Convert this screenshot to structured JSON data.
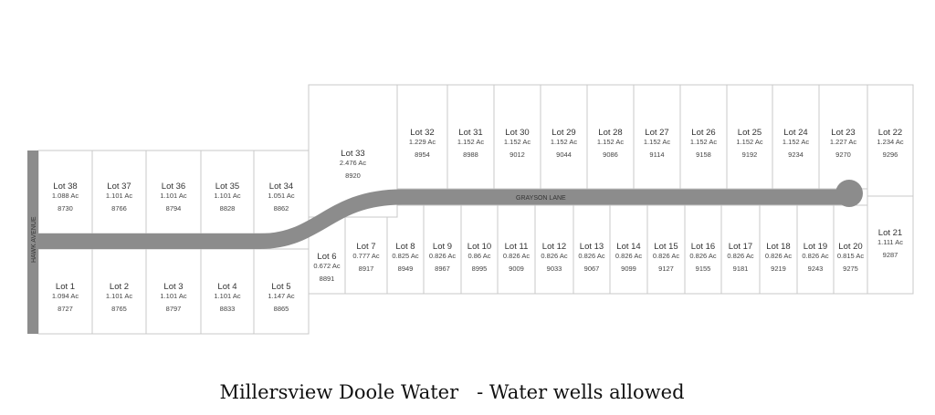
{
  "roads": {
    "vertical": "HAWK AVENUE",
    "main": "GRAYSON LANE"
  },
  "title": "Millersview Doole Water   - Water wells allowed",
  "colors": {
    "road": "#8c8c8c",
    "lot_border": "#c8c8c8",
    "text": "#333333"
  },
  "lots": [
    {
      "n": 1,
      "label": "Lot 1",
      "acres": "1.094 Ac",
      "address": "8727"
    },
    {
      "n": 2,
      "label": "Lot 2",
      "acres": "1.101 Ac",
      "address": "8765"
    },
    {
      "n": 3,
      "label": "Lot 3",
      "acres": "1.101 Ac",
      "address": "8797"
    },
    {
      "n": 4,
      "label": "Lot 4",
      "acres": "1.101 Ac",
      "address": "8833"
    },
    {
      "n": 5,
      "label": "Lot 5",
      "acres": "1.147 Ac",
      "address": "8865"
    },
    {
      "n": 6,
      "label": "Lot 6",
      "acres": "0.672 Ac",
      "address": "8891"
    },
    {
      "n": 7,
      "label": "Lot 7",
      "acres": "0.777 Ac",
      "address": "8917"
    },
    {
      "n": 8,
      "label": "Lot 8",
      "acres": "0.825 Ac",
      "address": "8949"
    },
    {
      "n": 9,
      "label": "Lot 9",
      "acres": "0.826 Ac",
      "address": "8967"
    },
    {
      "n": 10,
      "label": "Lot 10",
      "acres": "0.86 Ac",
      "address": "8995"
    },
    {
      "n": 11,
      "label": "Lot 11",
      "acres": "0.826 Ac",
      "address": "9009"
    },
    {
      "n": 12,
      "label": "Lot 12",
      "acres": "0.826 Ac",
      "address": "9033"
    },
    {
      "n": 13,
      "label": "Lot 13",
      "acres": "0.826 Ac",
      "address": "9067"
    },
    {
      "n": 14,
      "label": "Lot 14",
      "acres": "0.826 Ac",
      "address": "9099"
    },
    {
      "n": 15,
      "label": "Lot 15",
      "acres": "0.826 Ac",
      "address": "9127"
    },
    {
      "n": 16,
      "label": "Lot 16",
      "acres": "0.826 Ac",
      "address": "9155"
    },
    {
      "n": 17,
      "label": "Lot 17",
      "acres": "0.826 Ac",
      "address": "9181"
    },
    {
      "n": 18,
      "label": "Lot 18",
      "acres": "0.826 Ac",
      "address": "9219"
    },
    {
      "n": 19,
      "label": "Lot 19",
      "acres": "0.826 Ac",
      "address": "9243"
    },
    {
      "n": 20,
      "label": "Lot 20",
      "acres": "0.815 Ac",
      "address": "9275"
    },
    {
      "n": 21,
      "label": "Lot 21",
      "acres": "1.111 Ac",
      "address": "9287"
    },
    {
      "n": 22,
      "label": "Lot 22",
      "acres": "1.234 Ac",
      "address": "9296"
    },
    {
      "n": 23,
      "label": "Lot 23",
      "acres": "1.227 Ac",
      "address": "9270"
    },
    {
      "n": 24,
      "label": "Lot 24",
      "acres": "1.152 Ac",
      "address": "9234"
    },
    {
      "n": 25,
      "label": "Lot 25",
      "acres": "1.152 Ac",
      "address": "9192"
    },
    {
      "n": 26,
      "label": "Lot 26",
      "acres": "1.152 Ac",
      "address": "9158"
    },
    {
      "n": 27,
      "label": "Lot 27",
      "acres": "1.152 Ac",
      "address": "9114"
    },
    {
      "n": 28,
      "label": "Lot 28",
      "acres": "1.152 Ac",
      "address": "9086"
    },
    {
      "n": 29,
      "label": "Lot 29",
      "acres": "1.152 Ac",
      "address": "9044"
    },
    {
      "n": 30,
      "label": "Lot 30",
      "acres": "1.152 Ac",
      "address": "9012"
    },
    {
      "n": 31,
      "label": "Lot 31",
      "acres": "1.152 Ac",
      "address": "8988"
    },
    {
      "n": 32,
      "label": "Lot 32",
      "acres": "1.229 Ac",
      "address": "8954"
    },
    {
      "n": 33,
      "label": "Lot 33",
      "acres": "2.476 Ac",
      "address": "8920"
    },
    {
      "n": 34,
      "label": "Lot 34",
      "acres": "1.051 Ac",
      "address": "8862"
    },
    {
      "n": 35,
      "label": "Lot 35",
      "acres": "1.101 Ac",
      "address": "8828"
    },
    {
      "n": 36,
      "label": "Lot 36",
      "acres": "1.101 Ac",
      "address": "8794"
    },
    {
      "n": 37,
      "label": "Lot 37",
      "acres": "1.101 Ac",
      "address": "8766"
    },
    {
      "n": 38,
      "label": "Lot 38",
      "acres": "1.088 Ac",
      "address": "8730"
    }
  ]
}
